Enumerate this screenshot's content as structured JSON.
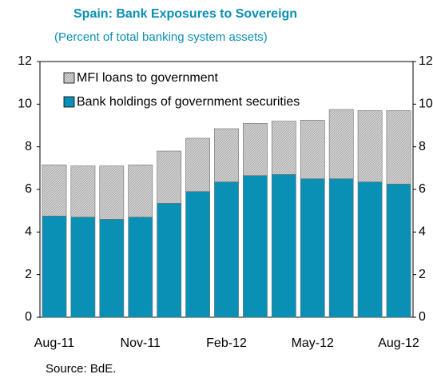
{
  "chart_data": {
    "type": "stacked_bar",
    "title": "Spain: Bank  Exposures to Sovereign",
    "subtitle": "(Percent of total banking system assets)",
    "source": "Source: BdE.",
    "categories": [
      "Aug-11",
      null,
      null,
      "Nov-11",
      null,
      null,
      "Feb-12",
      null,
      null,
      "May-12",
      null,
      null,
      "Aug-12"
    ],
    "series": [
      {
        "name": "Bank holdings of government securities",
        "color": "#0a8fb5",
        "values": [
          4.75,
          4.7,
          4.6,
          4.7,
          5.35,
          5.9,
          6.35,
          6.65,
          6.7,
          6.5,
          6.5,
          6.35,
          6.25
        ]
      },
      {
        "name": "MFI loans to government",
        "color": "#c9c9c9",
        "values": [
          2.4,
          2.4,
          2.5,
          2.45,
          2.45,
          2.5,
          2.5,
          2.45,
          2.5,
          2.75,
          3.25,
          3.35,
          3.45
        ]
      }
    ],
    "ylim": [
      0,
      12
    ],
    "yticks": [
      0,
      2,
      4,
      6,
      8,
      10,
      12
    ],
    "y2lim": [
      0,
      12
    ],
    "y2ticks": [
      0,
      2,
      4,
      6,
      8,
      10,
      12
    ],
    "legend": "upper left",
    "grid": false
  }
}
